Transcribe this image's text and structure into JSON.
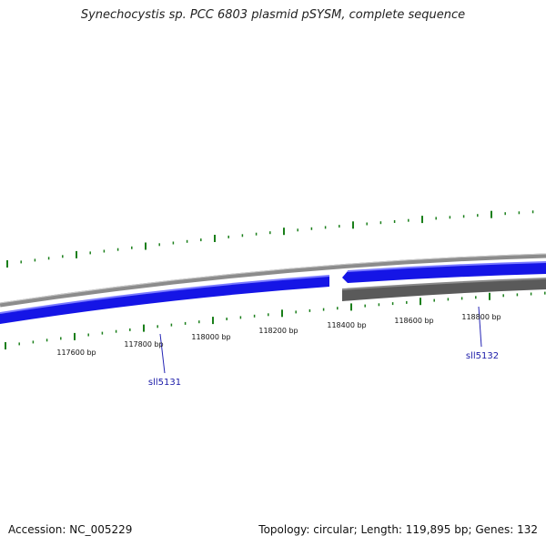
{
  "map": {
    "title": "Synechocystis sp. PCC 6803 plasmid pSYSM, complete sequence",
    "accession": "Accession: NC_005229",
    "stats": "Topology: circular; Length: 119,895 bp; Genes: 132",
    "topology": "circular",
    "length_bp": 119895,
    "gene_count": 132,
    "colors": {
      "forward_gene": "#1515e6",
      "forward_gene_highlight": "#5a5aff",
      "reverse_gene": "#555555",
      "backbone": "#8c8c8c",
      "ticks": "#1a7f1a",
      "label_line": "#2323b4",
      "label_text": "#1a1aa8",
      "position_text": "#111111"
    },
    "position_labels": [
      "117600 bp",
      "117800 bp",
      "118000 bp",
      "118200 bp",
      "118400 bp",
      "118600 bp",
      "118800 bp"
    ],
    "genes": [
      {
        "name": "sll5131",
        "strand": "forward"
      },
      {
        "name": "sll5132",
        "strand": "forward"
      }
    ]
  }
}
